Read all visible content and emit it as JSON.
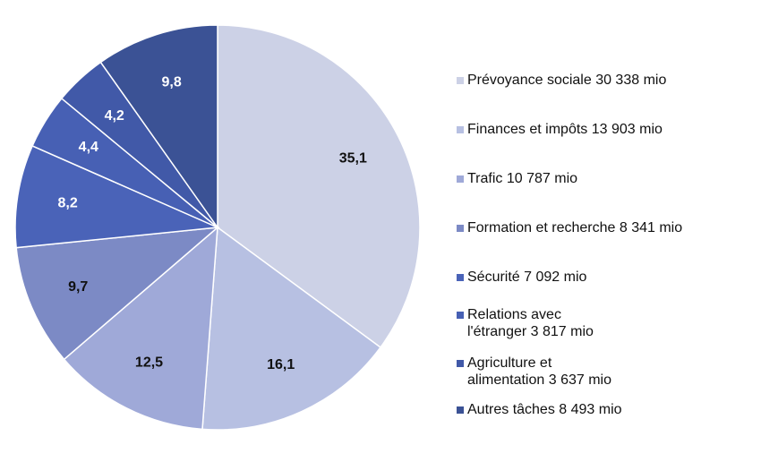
{
  "chart_data": {
    "type": "pie",
    "title": "",
    "slices": [
      {
        "label": "Prévoyance sociale 30 338 mio",
        "value": 35.1,
        "value_label": "35,1",
        "color": "#ccd1e6",
        "label_color": "#111111"
      },
      {
        "label": "Finances et impôts 13 903 mio",
        "value": 16.1,
        "value_label": "16,1",
        "color": "#b7c0e2",
        "label_color": "#111111"
      },
      {
        "label": "Trafic 10 787 mio",
        "value": 12.5,
        "value_label": "12,5",
        "color": "#9fa9d8",
        "label_color": "#111111"
      },
      {
        "label": "Formation et recherche 8 341 mio",
        "value": 9.7,
        "value_label": "9,7",
        "color": "#7c8ac5",
        "label_color": "#111111"
      },
      {
        "label": "Sécurité 7 092 mio",
        "value": 8.2,
        "value_label": "8,2",
        "color": "#4a63b8",
        "label_color": "#ffffff"
      },
      {
        "label": "Relations avec\nl'étranger 3 817 mio",
        "value": 4.4,
        "value_label": "4,4",
        "color": "#4760b4",
        "label_color": "#ffffff"
      },
      {
        "label": "Agriculture et\nalimentation 3 637 mio",
        "value": 4.2,
        "value_label": "4,2",
        "color": "#4159a8",
        "label_color": "#ffffff"
      },
      {
        "label": "Autres tâches 8 493 mio",
        "value": 9.8,
        "value_label": "9,8",
        "color": "#3b5295",
        "label_color": "#ffffff"
      }
    ],
    "legend_position": "right"
  }
}
